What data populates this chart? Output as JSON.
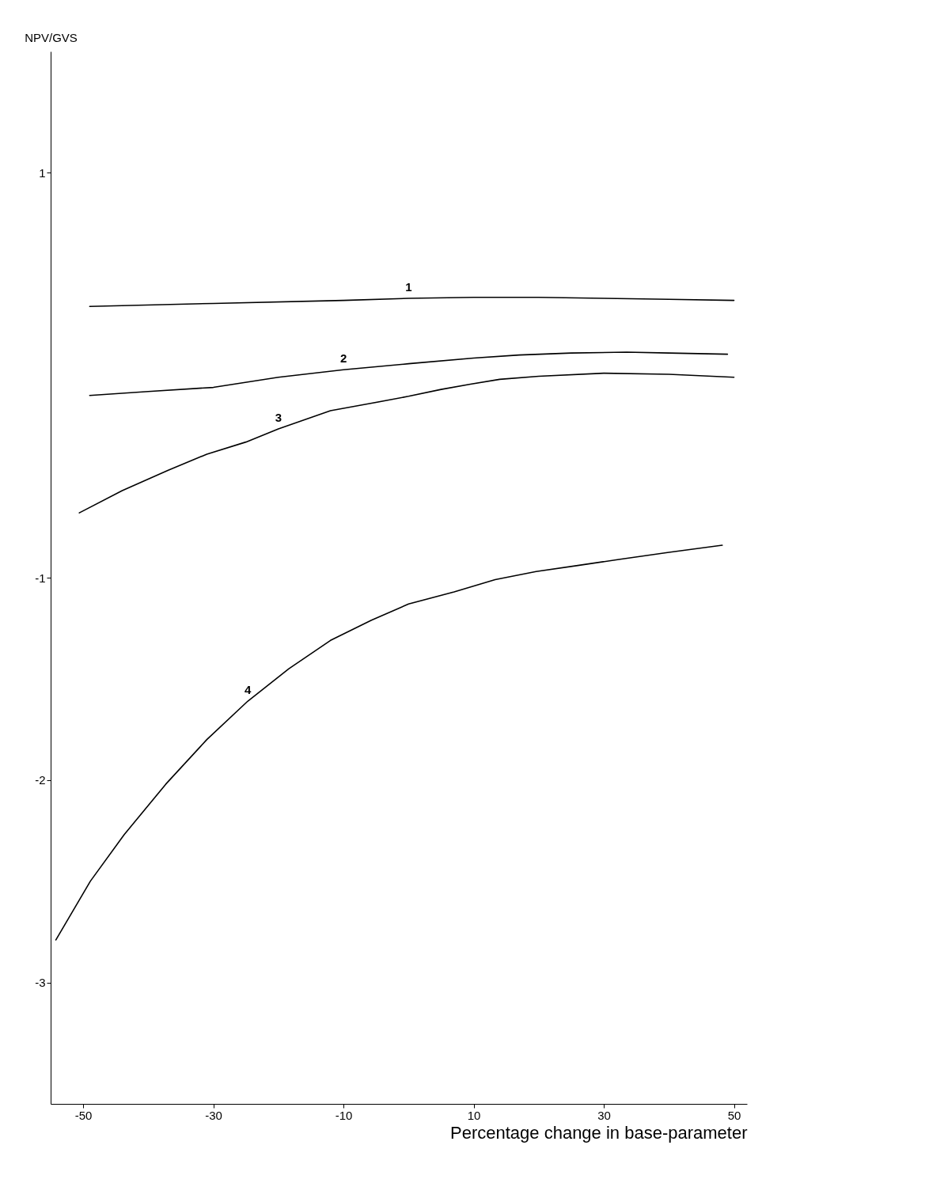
{
  "chart_data": {
    "type": "line",
    "xlabel": "Percentage change in base-parameter",
    "ylabel": "NPV/GVS",
    "xlim": [
      -55,
      52
    ],
    "ylim": [
      -3.6,
      1.6
    ],
    "xticks": [
      -50,
      -30,
      -10,
      10,
      30,
      50
    ],
    "yticks": [
      -3,
      -2,
      -1,
      1
    ],
    "grid": false,
    "series": [
      {
        "name": "1",
        "color": "#000000",
        "x": [
          -49,
          -30,
          -10,
          0,
          10,
          20,
          30,
          40,
          50
        ],
        "values": [
          0.34,
          0.355,
          0.37,
          0.38,
          0.385,
          0.385,
          0.38,
          0.375,
          0.37
        ]
      },
      {
        "name": "2",
        "color": "#000000",
        "x": [
          -49,
          -40,
          -30,
          -20,
          -10,
          0,
          10,
          17,
          25,
          33.5,
          40,
          49
        ],
        "values": [
          -0.1,
          -0.08,
          -0.06,
          -0.01,
          0.027,
          0.057,
          0.085,
          0.1,
          0.11,
          0.114,
          0.11,
          0.104
        ]
      },
      {
        "name": "3",
        "color": "#000000",
        "x": [
          -50.6,
          -44,
          -37,
          -31,
          -25,
          -20,
          -12,
          -6,
          0,
          5,
          9.5,
          14,
          20,
          30,
          40,
          50
        ],
        "values": [
          -0.68,
          -0.57,
          -0.47,
          -0.39,
          -0.33,
          -0.265,
          -0.175,
          -0.14,
          -0.104,
          -0.07,
          -0.044,
          -0.02,
          -0.005,
          0.01,
          0.005,
          -0.01
        ]
      },
      {
        "name": "4",
        "color": "#000000",
        "x": [
          -54.2,
          -48.9,
          -43.7,
          -37.3,
          -31,
          -24.7,
          -18.4,
          -12,
          -5.7,
          0,
          7,
          13.3,
          19.6,
          26,
          32.3,
          40,
          48.2
        ],
        "values": [
          -2.79,
          -2.5,
          -2.27,
          -2.02,
          -1.8,
          -1.61,
          -1.45,
          -1.31,
          -1.21,
          -1.13,
          -1.07,
          -1.01,
          -0.97,
          -0.94,
          -0.91,
          -0.875,
          -0.84
        ]
      }
    ]
  }
}
